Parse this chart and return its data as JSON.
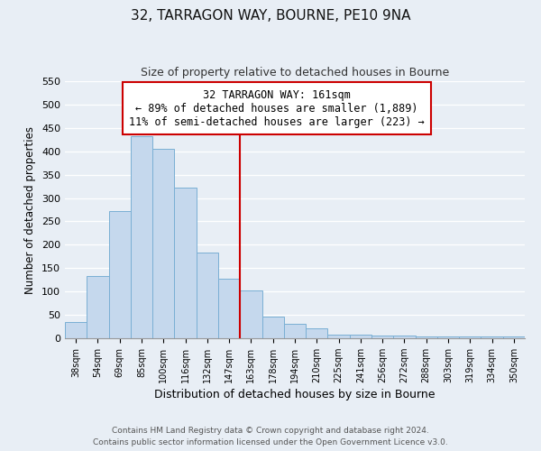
{
  "title": "32, TARRAGON WAY, BOURNE, PE10 9NA",
  "subtitle": "Size of property relative to detached houses in Bourne",
  "xlabel": "Distribution of detached houses by size in Bourne",
  "ylabel": "Number of detached properties",
  "bin_labels": [
    "38sqm",
    "54sqm",
    "69sqm",
    "85sqm",
    "100sqm",
    "116sqm",
    "132sqm",
    "147sqm",
    "163sqm",
    "178sqm",
    "194sqm",
    "210sqm",
    "225sqm",
    "241sqm",
    "256sqm",
    "272sqm",
    "288sqm",
    "303sqm",
    "319sqm",
    "334sqm",
    "350sqm"
  ],
  "bar_heights": [
    35,
    133,
    272,
    432,
    405,
    323,
    183,
    128,
    103,
    46,
    30,
    21,
    8,
    8,
    5,
    5,
    3,
    3,
    3,
    3,
    3
  ],
  "bar_color": "#c5d8ed",
  "bar_edge_color": "#7aafd4",
  "vline_x_index": 8,
  "vline_color": "#cc0000",
  "ylim": [
    0,
    550
  ],
  "yticks": [
    0,
    50,
    100,
    150,
    200,
    250,
    300,
    350,
    400,
    450,
    500,
    550
  ],
  "annotation_title": "32 TARRAGON WAY: 161sqm",
  "annotation_line1": "← 89% of detached houses are smaller (1,889)",
  "annotation_line2": "11% of semi-detached houses are larger (223) →",
  "annotation_box_color": "#ffffff",
  "annotation_box_edge": "#cc0000",
  "footer_line1": "Contains HM Land Registry data © Crown copyright and database right 2024.",
  "footer_line2": "Contains public sector information licensed under the Open Government Licence v3.0.",
  "background_color": "#e8eef5",
  "grid_color": "#d0dce8",
  "title_fontsize": 11,
  "subtitle_fontsize": 9
}
